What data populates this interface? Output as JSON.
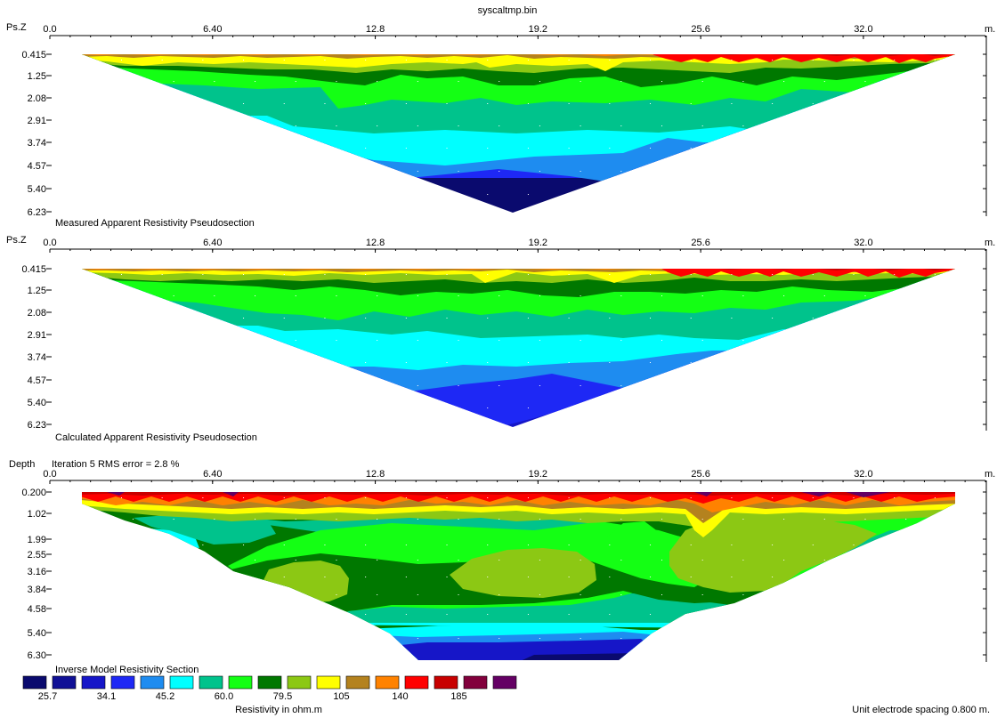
{
  "file_title": "syscaltmp.bin",
  "x_unit": "m.",
  "x_ticks": [
    "0.0",
    "6.40",
    "12.8",
    "19.2",
    "25.6",
    "32.0"
  ],
  "x_tick_values": [
    0,
    6.4,
    12.8,
    19.2,
    25.6,
    32.0
  ],
  "x_range": [
    0,
    36.8
  ],
  "electrodes": {
    "first": 1.2,
    "last": 36.0
  },
  "panels": [
    {
      "id": "measured",
      "axis_label": "Ps.Z",
      "caption": "Measured Apparent Resistivity Pseudosection",
      "y_ticks": [
        "0.415",
        "1.25",
        "2.08",
        "2.91",
        "3.74",
        "4.57",
        "5.40",
        "6.23"
      ]
    },
    {
      "id": "calculated",
      "axis_label": "Ps.Z",
      "caption": "Calculated Apparent Resistivity Pseudosection",
      "y_ticks": [
        "0.415",
        "1.25",
        "2.08",
        "2.91",
        "3.74",
        "4.57",
        "5.40",
        "6.23"
      ]
    },
    {
      "id": "inverse",
      "axis_label": "Depth",
      "iteration_text": "Iteration 5 RMS error = 2.8 %",
      "caption": "Inverse Model Resistivity Section",
      "y_ticks": [
        "0.200",
        "1.02",
        "1.99",
        "2.55",
        "3.16",
        "3.84",
        "4.58",
        "5.40",
        "6.30"
      ]
    }
  ],
  "legend": {
    "colors": [
      "#0a0a6e",
      "#101096",
      "#1616c8",
      "#1e28f5",
      "#1e8cf0",
      "#00ffff",
      "#00c38c",
      "#14ff14",
      "#007800",
      "#8cc814",
      "#ffff00",
      "#b4821e",
      "#ff8200",
      "#ff0000",
      "#c80000",
      "#82003c",
      "#640064"
    ],
    "labels": [
      "25.7",
      "34.1",
      "45.2",
      "60.0",
      "79.5",
      "105",
      "140",
      "185"
    ],
    "title": "Resistivity in ohm.m"
  },
  "footer": "Unit electrode spacing 0.800 m.",
  "chart_data": {
    "type": "heatmap",
    "title": "syscaltmp.bin",
    "xlabel": "m.",
    "xlim": [
      0,
      36.8
    ],
    "color_scale_ohm_m": [
      25.7,
      34.1,
      45.2,
      60.0,
      79.5,
      105,
      140,
      185
    ]
  }
}
